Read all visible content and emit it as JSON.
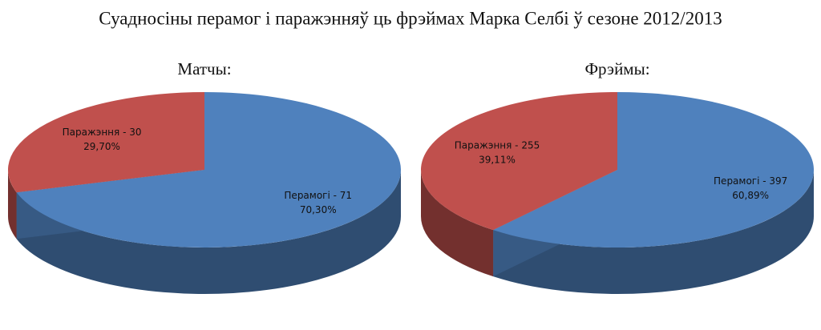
{
  "title": "Суадносіны перамог і паражэнняў ць фрэймах Марка Селбі ў сезоне 2012/2013",
  "chart_data": [
    {
      "type": "pie",
      "title": "Матчы:",
      "values": [
        30,
        71
      ],
      "value_labels": [
        "Паражэння - 30",
        "Перамогі - 71"
      ],
      "percents": [
        29.7,
        70.3
      ],
      "percent_labels": [
        "29,70%",
        "70,30%"
      ],
      "colors": [
        "#c0504d",
        "#4f81bd"
      ]
    },
    {
      "type": "pie",
      "title": "Фрэймы:",
      "values": [
        255,
        397
      ],
      "value_labels": [
        "Паражэння - 255",
        "Перамогі - 397"
      ],
      "percents": [
        39.11,
        60.89
      ],
      "percent_labels": [
        "39,11%",
        "60,89%"
      ],
      "colors": [
        "#c0504d",
        "#4f81bd"
      ]
    }
  ]
}
